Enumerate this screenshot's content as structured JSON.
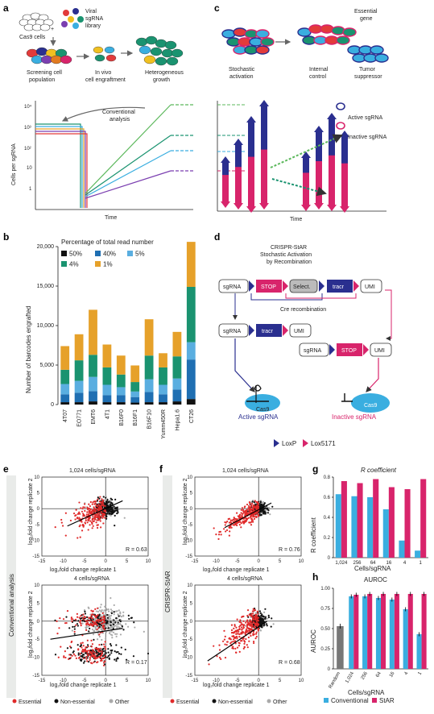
{
  "panel_labels": {
    "a": "a",
    "b": "b",
    "c": "c",
    "d": "d",
    "e": "e",
    "f": "f",
    "g": "g",
    "h": "h"
  },
  "panel_a": {
    "cells_label": "Cas9 cells",
    "library_label": "Viral sgRNA library",
    "step1": "Screening cell population",
    "step2": "In vivo cell engraftment",
    "step3": "Heterogeneous growth",
    "annotation": "Conventional analysis",
    "ylabel": "Cells per sgRNA",
    "xlabel": "Time",
    "yticks": [
      "10⁴",
      "10³",
      "10²",
      "10",
      "1"
    ]
  },
  "panel_c": {
    "label_essential": "Essential gene",
    "label_stochastic": "Stochastic activation",
    "label_internal": "Internal control",
    "label_tumor": "Tumor suppressor",
    "legend_active": "Active sgRNA",
    "legend_inactive": "Inactive sgRNA",
    "xlabel": "Time"
  },
  "panel_d": {
    "title1": "CRISPR-StAR",
    "title2": "Stochastic Activation",
    "title3": "by Recombination",
    "sgrna": "sgRNA",
    "stop": "STOP",
    "select": "Select.",
    "tracr": "tracr",
    "umi": "UMI",
    "cre": "Cre recombination",
    "cas9": "Cas9",
    "active": "Active sgRNA",
    "inactive": "Inactive sgRNA",
    "loxp": "LoxP",
    "lox5171": "Lox5171"
  },
  "panel_e": {
    "side_label": "Conventional analysis",
    "top_title": "1,024 cells/sgRNA",
    "bottom_title": "4 cells/sgRNA",
    "r_top": "R = 0.63",
    "r_bottom": "R = 0.17",
    "xlabel": "log₂fold change replicate 1",
    "ylabel": "log₂fold change replicate 2"
  },
  "panel_f": {
    "side_label": "CRISPR-StAR",
    "top_title": "1,024 cells/sgRNA",
    "bottom_title": "4 cells/sgRNA",
    "r_top": "R = 0.76",
    "r_bottom": "R = 0.68",
    "xlabel": "log₂fold change replicate 1",
    "ylabel": "log₂fold change replicate 2"
  },
  "scatter_legend": {
    "essential": "Essential",
    "nonessential": "Non-essential",
    "other": "Other"
  },
  "chart_data": [
    {
      "type": "bar",
      "id": "b",
      "title": "Percentage of total read number",
      "ylabel": "Number of barcodes engrafted",
      "ylim": [
        0,
        20000
      ],
      "yticks": [
        "0",
        "5,000",
        "10,000",
        "15,000",
        "20,000"
      ],
      "categories": [
        "4T07",
        "EO771",
        "EMT6",
        "4T1",
        "B16F0",
        "B16F1",
        "B16F10",
        "Yumm450R",
        "Hepa1.6",
        "CT26"
      ],
      "series": [
        {
          "name": "50%",
          "color": "#111111",
          "values": [
            300,
            300,
            400,
            300,
            300,
            250,
            300,
            300,
            400,
            700
          ]
        },
        {
          "name": "40%",
          "color": "#1f6fb2",
          "values": [
            1000,
            1200,
            1300,
            900,
            900,
            700,
            1300,
            1000,
            1500,
            5000
          ]
        },
        {
          "name": "5%",
          "color": "#5aaee0",
          "values": [
            1300,
            1500,
            1800,
            1300,
            1000,
            700,
            1600,
            1200,
            1400,
            2200
          ]
        },
        {
          "name": "4%",
          "color": "#1a9370",
          "values": [
            1800,
            2600,
            2800,
            2200,
            1600,
            1200,
            3000,
            2200,
            2800,
            7000
          ]
        },
        {
          "name": "1%",
          "color": "#e6a12a",
          "values": [
            3000,
            3300,
            5700,
            2900,
            2400,
            2100,
            4600,
            1800,
            3100,
            5700
          ]
        }
      ]
    },
    {
      "type": "bar",
      "id": "g",
      "title": "R coefficient",
      "xlabel": "Cells/sgRNA",
      "ylabel": "R coefficient",
      "ylim": [
        0,
        0.8
      ],
      "yticks": [
        "0",
        "0.2",
        "0.4",
        "0.6",
        "0.8"
      ],
      "categories": [
        "1,024",
        "256",
        "64",
        "16",
        "4",
        "1"
      ],
      "series": [
        {
          "name": "Conventional",
          "color": "#3aaee0",
          "values": [
            0.63,
            0.61,
            0.6,
            0.48,
            0.17,
            0.07
          ]
        },
        {
          "name": "StAR",
          "color": "#d8246b",
          "values": [
            0.76,
            0.74,
            0.78,
            0.7,
            0.68,
            0.78
          ]
        }
      ]
    },
    {
      "type": "bar",
      "id": "h",
      "title": "AUROC",
      "xlabel": "Cells/sgRNA",
      "ylabel": "AUROC",
      "ylim": [
        0,
        1.0
      ],
      "yticks": [
        "0",
        "0.25",
        "0.50",
        "0.75",
        "1.00"
      ],
      "categories": [
        "Random",
        "1,024",
        "256",
        "64",
        "16",
        "4",
        "1"
      ],
      "random": 0.53,
      "series": [
        {
          "name": "Conventional",
          "color": "#3aaee0",
          "values": [
            null,
            0.9,
            0.9,
            0.88,
            0.86,
            0.74,
            0.43
          ]
        },
        {
          "name": "StAR",
          "color": "#d8246b",
          "values": [
            null,
            0.92,
            0.93,
            0.93,
            0.93,
            0.93,
            0.93
          ]
        }
      ]
    }
  ],
  "colors": {
    "navy": "#2a2f8f",
    "magenta": "#d8246b",
    "blue": "#3aaee0",
    "green": "#1a9370"
  }
}
